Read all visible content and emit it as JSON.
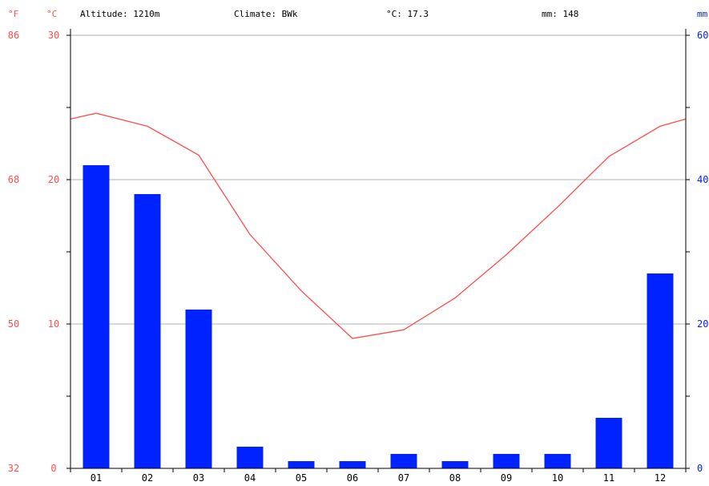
{
  "header": {
    "fahrenheit_unit": "°F",
    "celsius_unit": "°C",
    "altitude": "Altitude: 1210m",
    "climate": "Climate: BWk",
    "mean_temp": "°C: 17.3",
    "total_precip": "mm: 148",
    "precip_unit": "mm"
  },
  "colors": {
    "temperature": "#ff4d4d",
    "precipitation": "#0022ff",
    "grid": "#b0b0b0",
    "axis": "#000000",
    "text": "#000000"
  },
  "chart_data": {
    "type": "bar",
    "categories": [
      "01",
      "02",
      "03",
      "04",
      "05",
      "06",
      "07",
      "08",
      "09",
      "10",
      "11",
      "12"
    ],
    "series": [
      {
        "type": "bar",
        "axis": "right",
        "values": [
          42,
          38,
          22,
          3,
          1,
          1,
          2,
          1,
          2,
          2,
          7,
          27
        ]
      },
      {
        "type": "line",
        "axis": "left",
        "values": [
          24.6,
          23.7,
          21.7,
          16.2,
          12.3,
          9.0,
          9.6,
          11.8,
          14.8,
          18.1,
          21.6,
          23.7
        ]
      }
    ],
    "temperature_edge_value": 24.2,
    "left_axis_celsius": {
      "range": [
        0,
        30
      ],
      "ticks": [
        "0",
        "10",
        "20",
        "30"
      ]
    },
    "left_axis_fahrenheit": {
      "ticks": [
        "32",
        "50",
        "68",
        "86"
      ]
    },
    "right_axis_mm": {
      "range": [
        0,
        60
      ],
      "ticks": [
        "0",
        "20",
        "40",
        "60"
      ]
    },
    "gridlines": true
  }
}
